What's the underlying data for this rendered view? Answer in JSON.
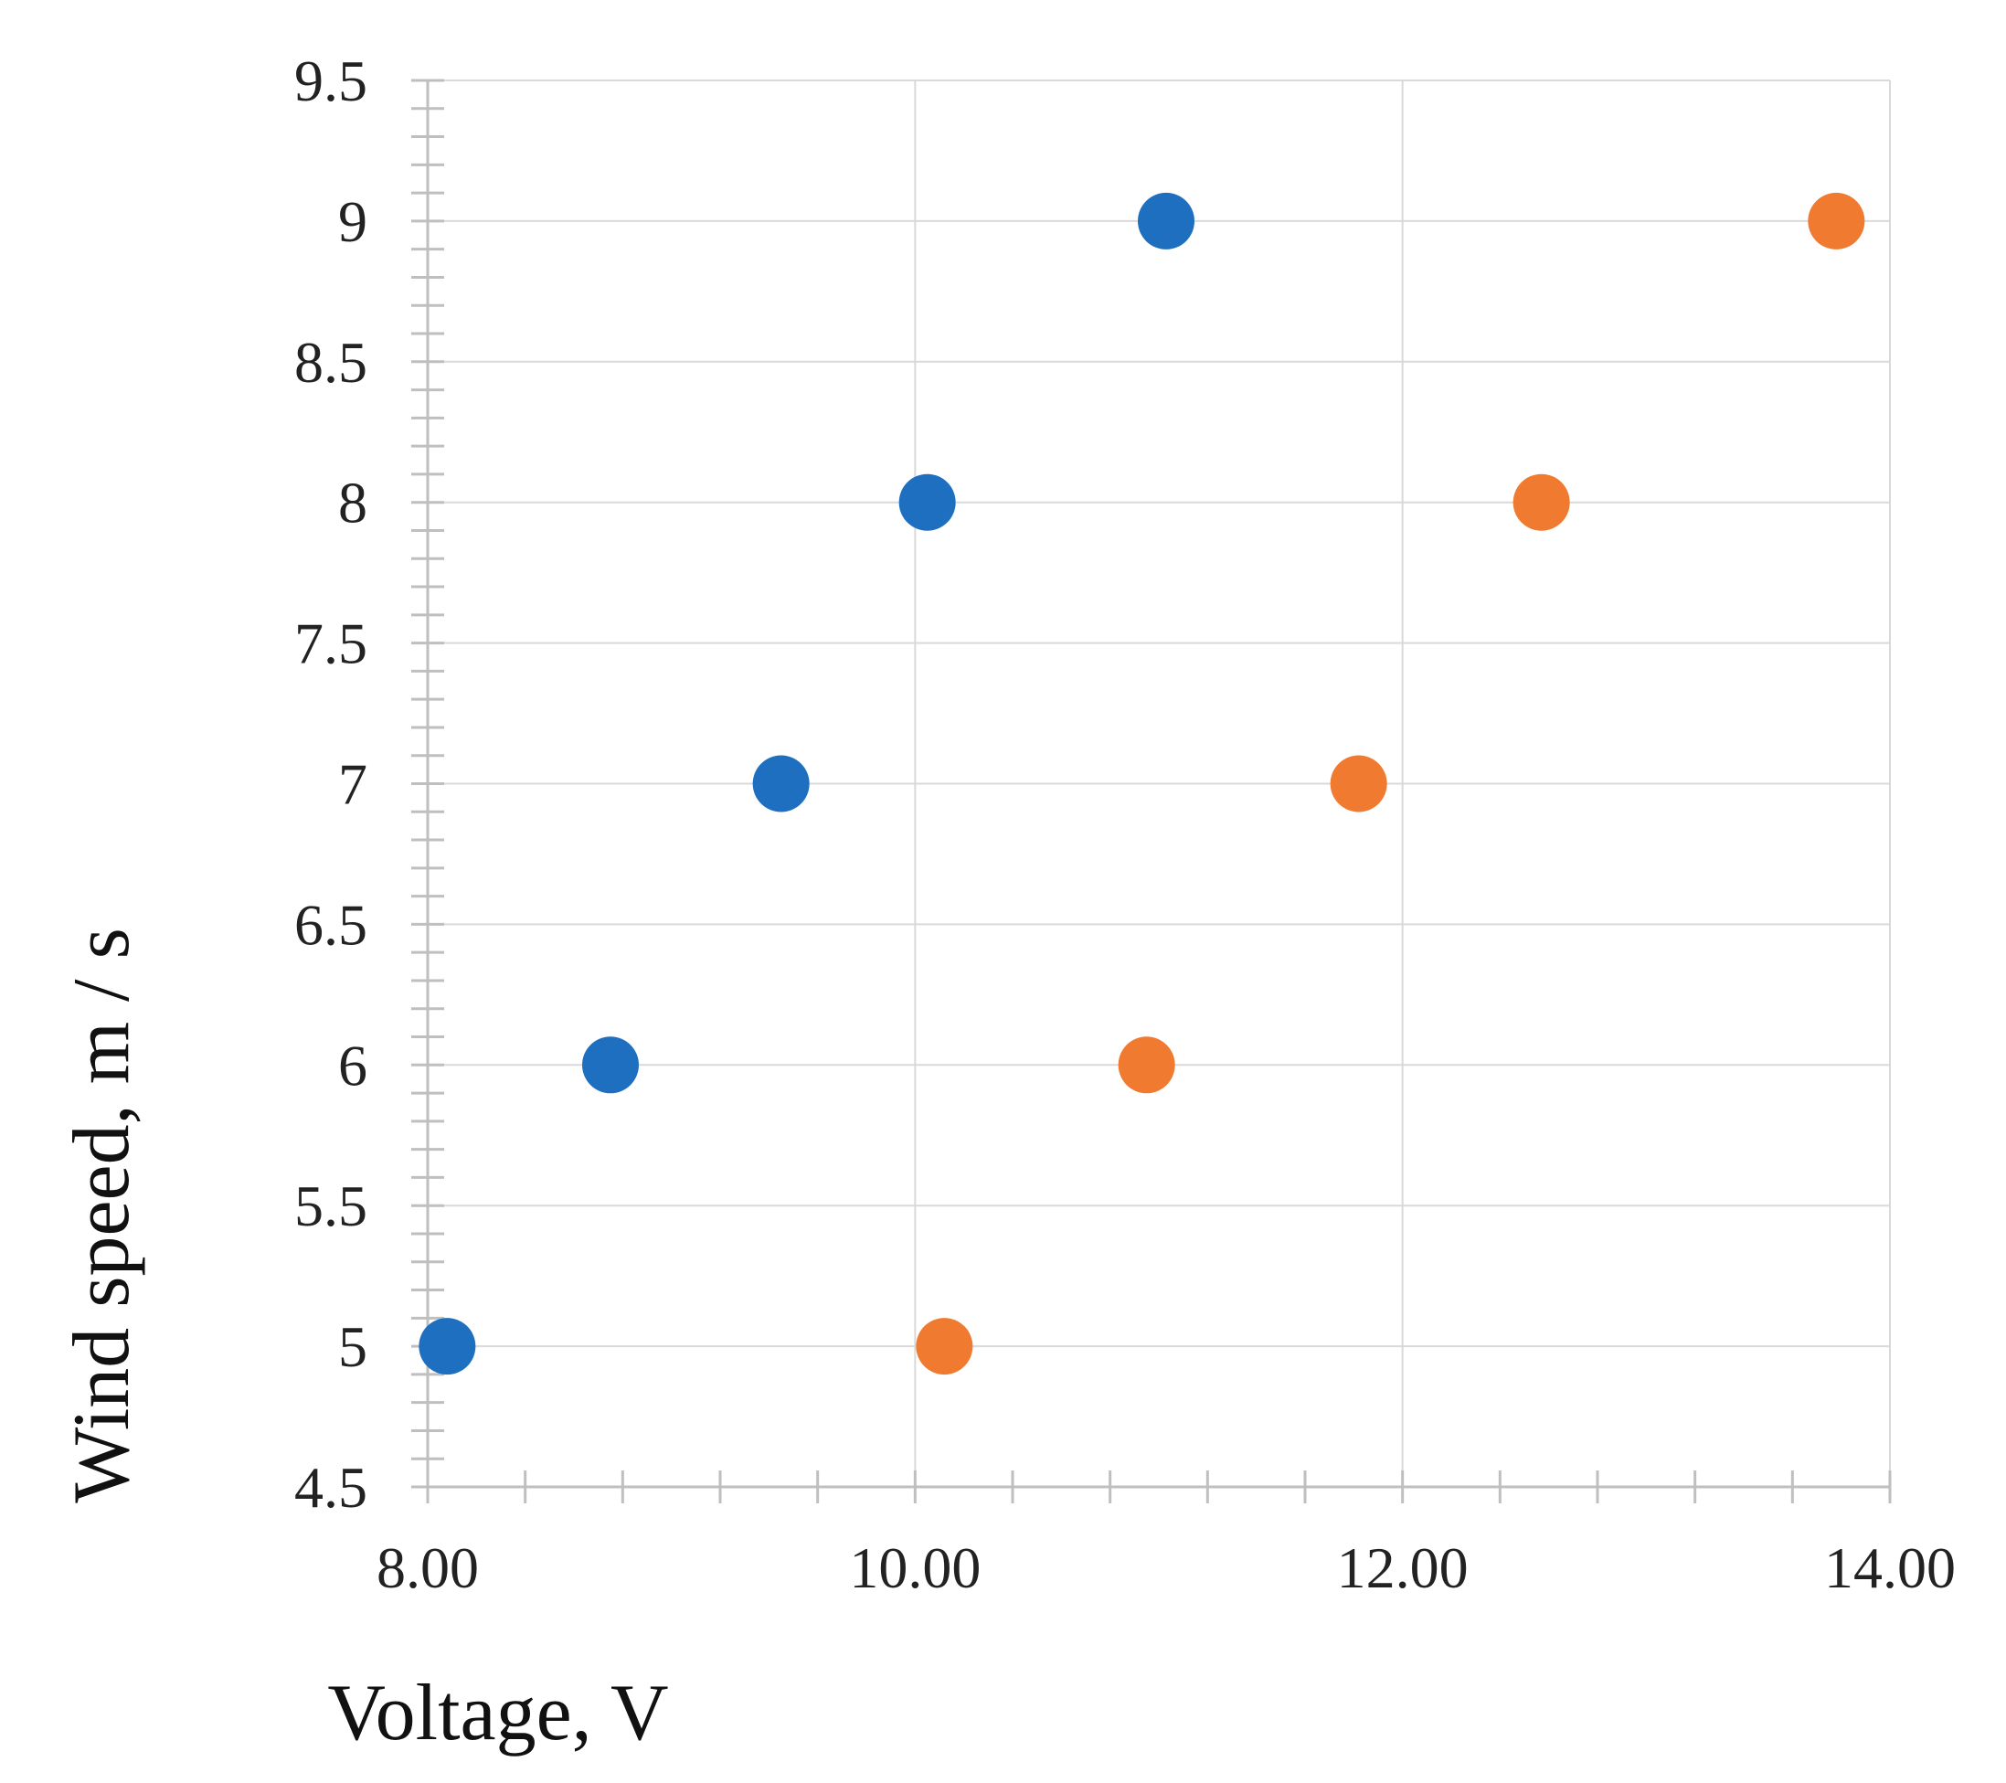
{
  "chart_data": {
    "type": "scatter",
    "title": "",
    "xlabel": "Voltage, V",
    "ylabel": "Wind speed, m / s",
    "xlim": [
      8.0,
      14.0
    ],
    "ylim": [
      4.5,
      9.5
    ],
    "x_ticks": [
      "8.00",
      "10.00",
      "12.00",
      "14.00"
    ],
    "y_ticks": [
      "4.5",
      "5",
      "5.5",
      "6",
      "6.5",
      "7",
      "7.5",
      "8",
      "8.5",
      "9",
      "9.5"
    ],
    "grid": true,
    "legend": "none",
    "series": [
      {
        "color": "#1f6fc0",
        "points": [
          {
            "x": 8.08,
            "y": 5
          },
          {
            "x": 8.75,
            "y": 6
          },
          {
            "x": 9.45,
            "y": 7
          },
          {
            "x": 10.05,
            "y": 8
          },
          {
            "x": 11.03,
            "y": 9
          }
        ]
      },
      {
        "color": "#f07a30",
        "points": [
          {
            "x": 10.12,
            "y": 5
          },
          {
            "x": 10.95,
            "y": 6
          },
          {
            "x": 11.82,
            "y": 7
          },
          {
            "x": 12.57,
            "y": 8
          },
          {
            "x": 13.78,
            "y": 9
          }
        ]
      }
    ]
  }
}
